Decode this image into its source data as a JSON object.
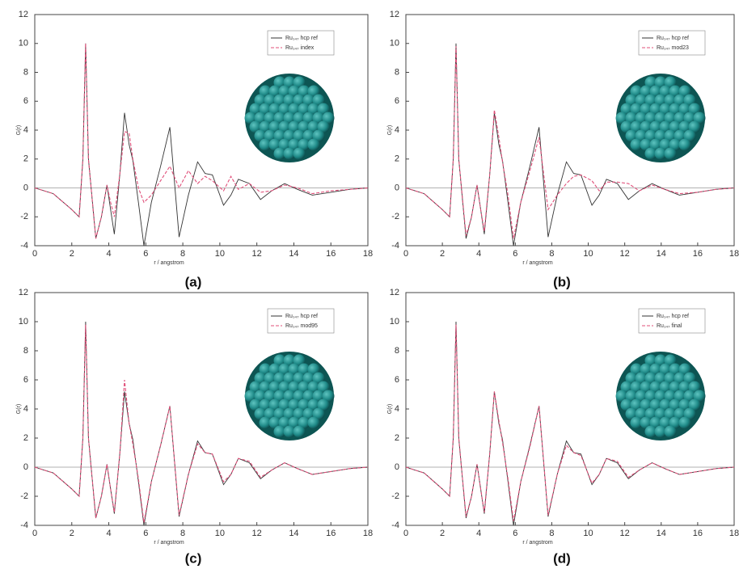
{
  "chart_data": [
    {
      "type": "line",
      "panel_label": "(a)",
      "x_label": "r / angstrom",
      "y_label": "G(r)",
      "x": [
        0,
        1,
        2,
        2.4,
        2.6,
        2.75,
        2.9,
        3.3,
        3.6,
        3.9,
        4.1,
        4.3,
        4.6,
        4.85,
        5.1,
        5.3,
        5.6,
        5.9,
        6.3,
        6.8,
        7.3,
        7.8,
        8.3,
        8.8,
        9.2,
        9.6,
        10.2,
        10.6,
        11,
        11.6,
        12.2,
        12.8,
        13.5,
        14.2,
        15,
        16,
        17,
        18
      ],
      "series": [
        {
          "name": "Ru₁₄₇ hcp ref",
          "color": "#333333",
          "values": [
            0,
            -0.4,
            -1.5,
            -2,
            2,
            10,
            2,
            -3.5,
            -2,
            0.2,
            -1.5,
            -3.2,
            1,
            5.2,
            3,
            1.9,
            -1,
            -4,
            -1,
            1.5,
            4.2,
            -3.4,
            -0.5,
            1.8,
            1,
            0.9,
            -1.2,
            -0.5,
            0.6,
            0.3,
            -0.8,
            -0.2,
            0.3,
            -0.1,
            -0.5,
            -0.3,
            -0.1,
            0
          ]
        },
        {
          "name": "Ru₁₄₇ index",
          "color": "#e0507a",
          "values": [
            0,
            -0.4,
            -1.5,
            -2,
            2,
            10,
            2,
            -3.5,
            -2,
            0.2,
            -1,
            -2,
            1,
            3.9,
            3.8,
            2,
            0,
            -1,
            -0.5,
            0.5,
            1.5,
            0,
            1.2,
            0.3,
            0.8,
            0.5,
            -0.2,
            0.8,
            -0.1,
            0.3,
            -0.3,
            -0.2,
            0.2,
            0,
            -0.4,
            -0.2,
            -0.1,
            0
          ]
        }
      ],
      "xlim": [
        0,
        18
      ],
      "ylim": [
        -4,
        12
      ],
      "xticks": [
        0,
        2,
        4,
        6,
        8,
        10,
        12,
        14,
        16,
        18
      ],
      "yticks": [
        -4,
        -2,
        0,
        2,
        4,
        6,
        8,
        10,
        12
      ]
    },
    {
      "type": "line",
      "panel_label": "(b)",
      "x_label": "r / angstrom",
      "y_label": "G(r)",
      "x": [
        0,
        1,
        2,
        2.4,
        2.6,
        2.75,
        2.9,
        3.3,
        3.6,
        3.9,
        4.1,
        4.3,
        4.6,
        4.85,
        5.1,
        5.3,
        5.6,
        5.9,
        6.3,
        6.8,
        7.3,
        7.8,
        8.3,
        8.8,
        9.2,
        9.6,
        10.2,
        10.6,
        11,
        11.6,
        12.2,
        12.8,
        13.5,
        14.2,
        15,
        16,
        17,
        18
      ],
      "series": [
        {
          "name": "Ru₁₄₇ hcp ref",
          "color": "#333333",
          "values": [
            0,
            -0.4,
            -1.5,
            -2,
            2,
            10,
            2,
            -3.5,
            -2,
            0.2,
            -1.5,
            -3.2,
            1,
            5.2,
            3,
            1.9,
            -1,
            -4,
            -1,
            1.5,
            4.2,
            -3.4,
            -0.5,
            1.8,
            1,
            0.9,
            -1.2,
            -0.5,
            0.6,
            0.3,
            -0.8,
            -0.2,
            0.3,
            -0.1,
            -0.5,
            -0.3,
            -0.1,
            0
          ]
        },
        {
          "name": "Ru₁₄₇ mod23",
          "color": "#e0507a",
          "values": [
            0,
            -0.4,
            -1.5,
            -2,
            2,
            9.8,
            2,
            -3.3,
            -2,
            0.2,
            -1.5,
            -3,
            1,
            5.4,
            3.5,
            1.8,
            -0.5,
            -3.5,
            -1,
            1.2,
            3.5,
            -1.5,
            -0.5,
            0.3,
            0.8,
            0.9,
            0.5,
            -0.2,
            0.4,
            0.4,
            0.3,
            -0.2,
            0.2,
            -0.1,
            -0.4,
            -0.3,
            -0.1,
            0
          ]
        }
      ],
      "xlim": [
        0,
        18
      ],
      "ylim": [
        -4,
        12
      ],
      "xticks": [
        0,
        2,
        4,
        6,
        8,
        10,
        12,
        14,
        16,
        18
      ],
      "yticks": [
        -4,
        -2,
        0,
        2,
        4,
        6,
        8,
        10,
        12
      ]
    },
    {
      "type": "line",
      "panel_label": "(c)",
      "x_label": "r / angstrom",
      "y_label": "G(r)",
      "x": [
        0,
        1,
        2,
        2.4,
        2.6,
        2.75,
        2.9,
        3.3,
        3.6,
        3.9,
        4.1,
        4.3,
        4.6,
        4.85,
        5.1,
        5.3,
        5.6,
        5.9,
        6.3,
        6.8,
        7.3,
        7.8,
        8.3,
        8.8,
        9.2,
        9.6,
        10.2,
        10.6,
        11,
        11.6,
        12.2,
        12.8,
        13.5,
        14.2,
        15,
        16,
        17,
        18
      ],
      "series": [
        {
          "name": "Ru₁₄₇ hcp ref",
          "color": "#333333",
          "values": [
            0,
            -0.4,
            -1.5,
            -2,
            2,
            10,
            2,
            -3.5,
            -2,
            0.2,
            -1.5,
            -3.2,
            1,
            5.2,
            3,
            1.9,
            -1,
            -4,
            -1,
            1.5,
            4.2,
            -3.4,
            -0.5,
            1.8,
            1,
            0.9,
            -1.2,
            -0.5,
            0.6,
            0.3,
            -0.8,
            -0.2,
            0.3,
            -0.1,
            -0.5,
            -0.3,
            -0.1,
            0
          ]
        },
        {
          "name": "Ru₁₄₇ mod95",
          "color": "#e0507a",
          "values": [
            0,
            -0.4,
            -1.5,
            -2,
            2,
            9.8,
            2,
            -3.5,
            -2,
            0.2,
            -1.5,
            -3.1,
            1,
            6,
            3,
            1.6,
            -0.8,
            -3.8,
            -1,
            1.5,
            4.2,
            -3.3,
            -0.5,
            1.6,
            1,
            0.9,
            -1,
            -0.5,
            0.6,
            0.4,
            -0.7,
            -0.2,
            0.3,
            -0.1,
            -0.5,
            -0.3,
            -0.1,
            0
          ]
        }
      ],
      "xlim": [
        0,
        18
      ],
      "ylim": [
        -4,
        12
      ],
      "xticks": [
        0,
        2,
        4,
        6,
        8,
        10,
        12,
        14,
        16,
        18
      ],
      "yticks": [
        -4,
        -2,
        0,
        2,
        4,
        6,
        8,
        10,
        12
      ]
    },
    {
      "type": "line",
      "panel_label": "(d)",
      "x_label": "r / angstrom",
      "y_label": "G(r)",
      "x": [
        0,
        1,
        2,
        2.4,
        2.6,
        2.75,
        2.9,
        3.3,
        3.6,
        3.9,
        4.1,
        4.3,
        4.6,
        4.85,
        5.1,
        5.3,
        5.6,
        5.9,
        6.3,
        6.8,
        7.3,
        7.8,
        8.3,
        8.8,
        9.2,
        9.6,
        10.2,
        10.6,
        11,
        11.6,
        12.2,
        12.8,
        13.5,
        14.2,
        15,
        16,
        17,
        18
      ],
      "series": [
        {
          "name": "Ru₁₄₇ hcp ref",
          "color": "#333333",
          "values": [
            0,
            -0.4,
            -1.5,
            -2,
            2,
            10,
            2,
            -3.5,
            -2,
            0.2,
            -1.5,
            -3.2,
            1,
            5.2,
            3,
            1.9,
            -1,
            -4,
            -1,
            1.5,
            4.2,
            -3.4,
            -0.5,
            1.8,
            1,
            0.9,
            -1.2,
            -0.5,
            0.6,
            0.3,
            -0.8,
            -0.2,
            0.3,
            -0.1,
            -0.5,
            -0.3,
            -0.1,
            0
          ]
        },
        {
          "name": "Ru₁₄₇ final",
          "color": "#e0507a",
          "values": [
            0,
            -0.4,
            -1.5,
            -2,
            2,
            9.8,
            2,
            -3.4,
            -2,
            0.2,
            -1.5,
            -3.1,
            1,
            5.2,
            3.2,
            1.7,
            -0.8,
            -3.7,
            -1,
            1.4,
            4.2,
            -3.3,
            -0.5,
            1.5,
            1,
            0.8,
            -1.1,
            -0.5,
            0.6,
            0.4,
            -0.7,
            -0.2,
            0.3,
            -0.1,
            -0.5,
            -0.3,
            -0.1,
            0
          ]
        }
      ],
      "xlim": [
        0,
        18
      ],
      "ylim": [
        -4,
        12
      ],
      "xticks": [
        0,
        2,
        4,
        6,
        8,
        10,
        12,
        14,
        16,
        18
      ],
      "yticks": [
        -4,
        -2,
        0,
        2,
        4,
        6,
        8,
        10,
        12
      ]
    }
  ]
}
